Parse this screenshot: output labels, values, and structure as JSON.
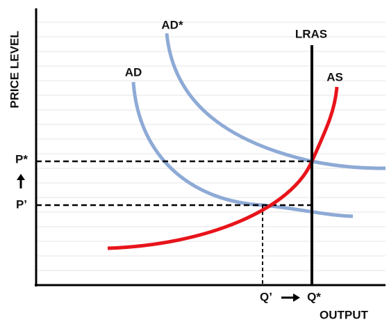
{
  "y_axis_label": "PRICE LEVEL",
  "x_axis_label": "OUTPUT",
  "curves": {
    "ad": "AD",
    "ad_star": "AD*",
    "as": "AS",
    "lras": "LRAS"
  },
  "price_levels": {
    "p_star": "P*",
    "p_prime": "P’"
  },
  "outputs": {
    "q_prime": "Q’",
    "q_star": "Q*"
  }
}
